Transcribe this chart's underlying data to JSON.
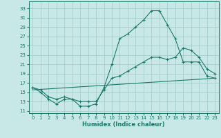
{
  "xlabel": "Humidex (Indice chaleur)",
  "bg_color": "#c8e8e8",
  "line_color": "#1a7a6a",
  "grid_color": "#a0c8c8",
  "xlim": [
    -0.5,
    23.5
  ],
  "ylim": [
    10.5,
    34.5
  ],
  "yticks": [
    11,
    13,
    15,
    17,
    19,
    21,
    23,
    25,
    27,
    29,
    31,
    33
  ],
  "xticks": [
    0,
    1,
    2,
    3,
    4,
    5,
    6,
    7,
    8,
    9,
    10,
    11,
    12,
    13,
    14,
    15,
    16,
    17,
    18,
    19,
    20,
    21,
    22,
    23
  ],
  "line1_x": [
    0,
    1,
    2,
    3,
    4,
    5,
    6,
    7,
    8,
    9,
    10,
    11,
    12,
    13,
    14,
    15,
    16,
    17,
    18,
    19,
    20,
    21,
    22,
    23
  ],
  "line1_y": [
    16.0,
    15.0,
    13.5,
    12.5,
    13.5,
    13.5,
    12.0,
    12.0,
    12.5,
    16.0,
    21.0,
    26.5,
    27.5,
    29.0,
    30.5,
    32.5,
    32.5,
    29.5,
    26.5,
    21.5,
    21.5,
    21.5,
    18.5,
    18.0
  ],
  "line2_x": [
    0,
    1,
    2,
    3,
    4,
    5,
    6,
    7,
    8,
    9,
    10,
    11,
    12,
    13,
    14,
    15,
    16,
    17,
    18,
    19,
    20,
    21,
    22,
    23
  ],
  "line2_y": [
    16.0,
    15.5,
    14.0,
    13.5,
    14.0,
    13.5,
    13.0,
    13.0,
    13.0,
    15.5,
    18.0,
    18.5,
    19.5,
    20.5,
    21.5,
    22.5,
    22.5,
    22.0,
    22.5,
    24.5,
    24.0,
    22.5,
    20.0,
    19.0
  ],
  "line3_x": [
    0,
    23
  ],
  "line3_y": [
    15.5,
    18.0
  ]
}
